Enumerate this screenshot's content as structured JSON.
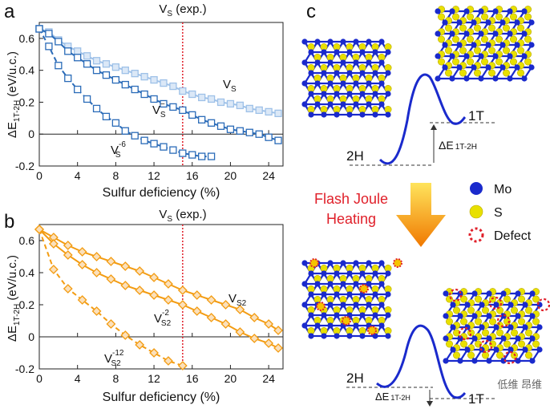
{
  "colors": {
    "blue_dark": "#2a6bb8",
    "blue_light": "#9ec1e8",
    "orange": "#f39c12",
    "orange_fill": "#fbe0bb",
    "red_dotted": "#e0202a",
    "mo_atom": "#1a2acc",
    "s_atom": "#e8e000",
    "arrow_top": "#ffe45c",
    "arrow_bottom": "#f07800",
    "energy_curve": "#1a2acc"
  },
  "chart_data": [
    {
      "type": "line",
      "panel": "a",
      "panel_label": "a",
      "title": "",
      "xlabel": "Sulfur deficiency (%)",
      "ylabel_main": "ΔE",
      "ylabel_sub": "1T-2H",
      "ylabel_unit": "(eV/u.c.)",
      "xlim": [
        0,
        25.5
      ],
      "ylim": [
        -0.2,
        0.7
      ],
      "xticks": [
        "0",
        "4",
        "8",
        "12",
        "16",
        "20",
        "24"
      ],
      "yticks": [
        "-0.2",
        "0",
        "0.2",
        "0.4",
        "0.6"
      ],
      "vline": {
        "x": 15,
        "label": "V",
        "label_sub": "S",
        "label_suffix": " (exp.)"
      },
      "series": [
        {
          "name": "V_S",
          "label_main": "V",
          "label_sub": "S",
          "label_sup": "",
          "style": "solid-light",
          "x": [
            0,
            1,
            2,
            3,
            4,
            5,
            6,
            7,
            8,
            9,
            10,
            11,
            12,
            13,
            14,
            15,
            16,
            17,
            18,
            19,
            20,
            21,
            22,
            23,
            24,
            25
          ],
          "values": [
            0.66,
            0.64,
            0.59,
            0.55,
            0.52,
            0.49,
            0.46,
            0.44,
            0.42,
            0.4,
            0.38,
            0.36,
            0.34,
            0.32,
            0.3,
            0.27,
            0.25,
            0.23,
            0.22,
            0.2,
            0.19,
            0.18,
            0.16,
            0.15,
            0.14,
            0.13
          ]
        },
        {
          "name": "V_S^-",
          "label_main": "V",
          "label_sub": "S",
          "label_sup": "−",
          "style": "solid-dark",
          "x": [
            0,
            1,
            2,
            3,
            4,
            5,
            6,
            7,
            8,
            9,
            10,
            11,
            12,
            13,
            14,
            15,
            16,
            17,
            18,
            19,
            20,
            21,
            22,
            23,
            24,
            25
          ],
          "values": [
            0.66,
            0.63,
            0.58,
            0.52,
            0.48,
            0.44,
            0.4,
            0.37,
            0.34,
            0.31,
            0.28,
            0.25,
            0.22,
            0.19,
            0.17,
            0.15,
            0.12,
            0.09,
            0.07,
            0.05,
            0.03,
            0.02,
            0.01,
            0.0,
            -0.02,
            -0.04
          ]
        },
        {
          "name": "V_S^-6",
          "label_main": "V",
          "label_sub": "S",
          "label_sup": "-6",
          "style": "dashed-dark",
          "x": [
            0,
            1,
            2,
            3,
            4,
            5,
            6,
            7,
            8,
            9,
            10,
            11,
            12,
            13,
            14,
            15,
            16,
            17,
            18
          ],
          "values": [
            0.66,
            0.55,
            0.43,
            0.35,
            0.28,
            0.22,
            0.16,
            0.11,
            0.07,
            0.02,
            -0.01,
            -0.04,
            -0.06,
            -0.08,
            -0.1,
            -0.12,
            -0.13,
            -0.14,
            -0.14
          ]
        }
      ]
    },
    {
      "type": "line",
      "panel": "b",
      "panel_label": "b",
      "title": "",
      "xlabel": "Sulfur deficiency (%)",
      "ylabel_main": "ΔE",
      "ylabel_sub": "1T-2H",
      "ylabel_unit": "(eV/u.c.)",
      "xlim": [
        0,
        25.5
      ],
      "ylim": [
        -0.2,
        0.7
      ],
      "xticks": [
        "0",
        "4",
        "8",
        "12",
        "16",
        "20",
        "24"
      ],
      "yticks": [
        "-0.2",
        "0",
        "0.2",
        "0.4",
        "0.6"
      ],
      "vline": {
        "x": 15,
        "label": "V",
        "label_sub": "S",
        "label_suffix": " (exp.)"
      },
      "series": [
        {
          "name": "V_S2",
          "label_main": "V",
          "label_sub": "S2",
          "label_sup": "",
          "style": "solid",
          "x": [
            0,
            1.5,
            3,
            4.5,
            6,
            7.5,
            9,
            10.5,
            12,
            13.5,
            15,
            16.5,
            18,
            19.5,
            21,
            22.5,
            24,
            25
          ],
          "values": [
            0.67,
            0.62,
            0.57,
            0.53,
            0.5,
            0.47,
            0.44,
            0.41,
            0.37,
            0.33,
            0.29,
            0.26,
            0.23,
            0.2,
            0.17,
            0.12,
            0.08,
            0.04
          ]
        },
        {
          "name": "V_S2^-2",
          "label_main": "V",
          "label_sub": "S2",
          "label_sup": "-2",
          "style": "solid",
          "x": [
            0,
            1.5,
            3,
            4.5,
            6,
            7.5,
            9,
            10.5,
            12,
            13.5,
            15,
            16.5,
            18,
            19.5,
            21,
            22.5,
            24,
            25
          ],
          "values": [
            0.67,
            0.58,
            0.51,
            0.45,
            0.4,
            0.36,
            0.32,
            0.29,
            0.26,
            0.23,
            0.2,
            0.16,
            0.12,
            0.08,
            0.03,
            -0.01,
            -0.04,
            -0.07
          ]
        },
        {
          "name": "V_S2^-12",
          "label_main": "V",
          "label_sub": "S2",
          "label_sup": "-12",
          "style": "dashed",
          "x": [
            0,
            1.5,
            3,
            4.5,
            6,
            7.5,
            9,
            10.5,
            12,
            13.5,
            15
          ],
          "values": [
            0.67,
            0.42,
            0.3,
            0.23,
            0.16,
            0.08,
            0.01,
            -0.05,
            -0.1,
            -0.15,
            -0.18
          ]
        }
      ]
    }
  ],
  "panel_c": {
    "panel_label": "c",
    "top_barrier": {
      "left_label": "2H",
      "right_label": "1T",
      "delta_main": "ΔE",
      "delta_sub": "1T-2H"
    },
    "bottom_barrier": {
      "left_label": "2H",
      "right_label": "1T",
      "delta_main": "ΔE",
      "delta_sub": "1T-2H"
    },
    "process_line1": "Flash Joule",
    "process_line2": "Heating",
    "legend": [
      {
        "label": "Mo",
        "kind": "mo"
      },
      {
        "label": "S",
        "kind": "s"
      },
      {
        "label": "Defect",
        "kind": "defect"
      }
    ]
  },
  "watermark": {
    "text": "低维 昂维"
  }
}
